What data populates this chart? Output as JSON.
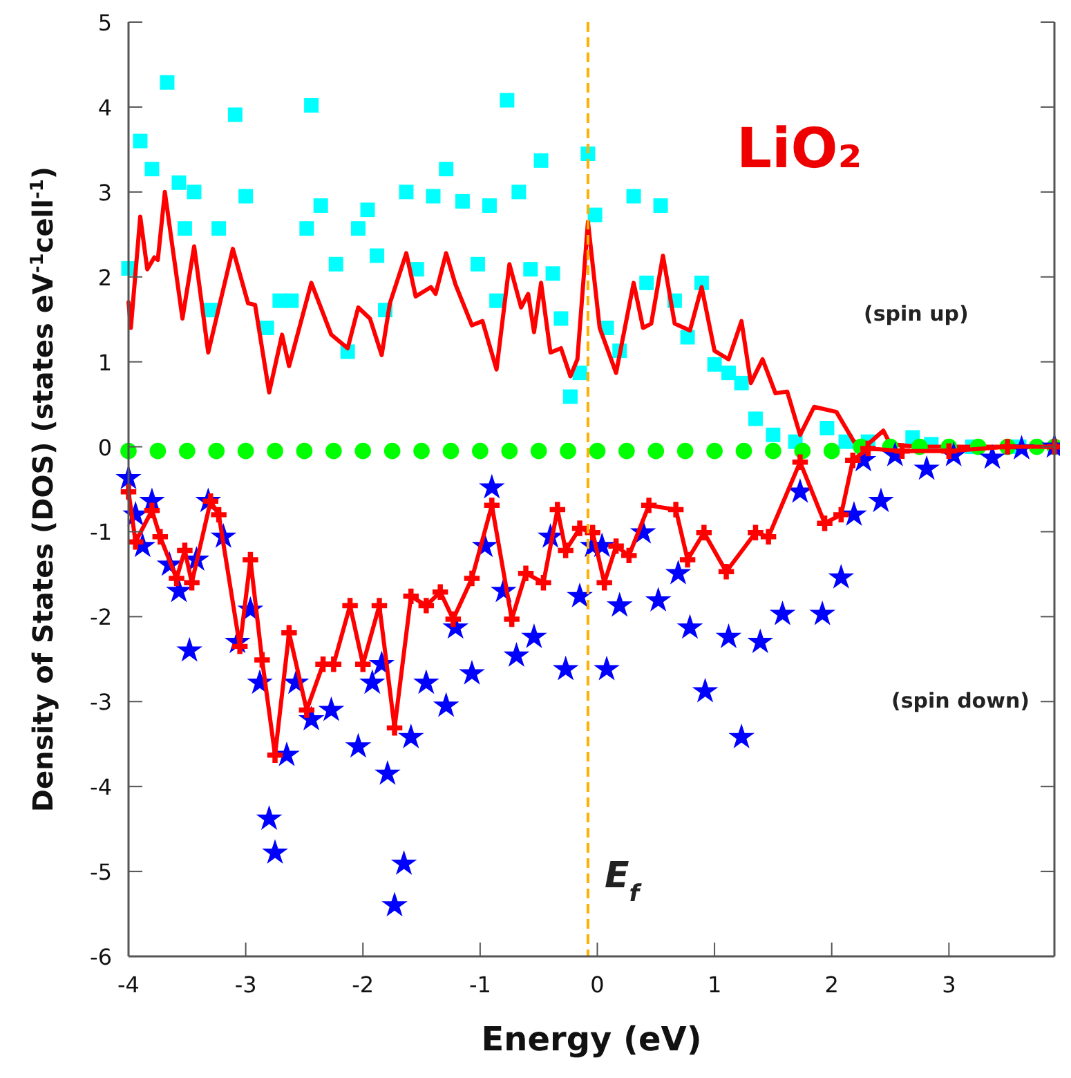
{
  "chart_data": {
    "type": "line",
    "xlabel": "Energy (eV)",
    "ylabel": "Density of States (DOS) (states eV$^{-1}$cell$^{-1}$)",
    "xlim": [
      -4,
      3.9
    ],
    "ylim": [
      -6,
      5
    ],
    "xticks": [
      -4,
      -3,
      -2,
      -1,
      0,
      1,
      2,
      3
    ],
    "yticks": [
      -6,
      -5,
      -4,
      -3,
      -2,
      -1,
      0,
      1,
      2,
      3,
      4,
      5
    ],
    "grid": false,
    "annotations": [
      "LiO₂",
      "(spin up)",
      "(spin down)"
    ],
    "ref_lines": [
      {
        "axis": "x",
        "value": -0.08,
        "label": "E$_{f}$",
        "color": "#ffb000",
        "line_style": "dashed"
      }
    ],
    "series": [
      {
        "type": "scatter",
        "marker": "square",
        "color": "#00ffff",
        "x": [
          -4.0,
          -3.9,
          -3.8,
          -3.67,
          -3.57,
          -3.52,
          -3.44,
          -3.3,
          -3.23,
          -3.09,
          -3.0,
          -2.82,
          -2.71,
          -2.61,
          -2.48,
          -2.44,
          -2.36,
          -2.23,
          -2.13,
          -2.04,
          -1.96,
          -1.88,
          -1.81,
          -1.63,
          -1.54,
          -1.4,
          -1.29,
          -1.15,
          -1.02,
          -0.92,
          -0.86,
          -0.77,
          -0.67,
          -0.57,
          -0.48,
          -0.38,
          -0.31,
          -0.23,
          -0.15,
          -0.08,
          -0.02,
          0.08,
          0.19,
          0.31,
          0.42,
          0.54,
          0.66,
          0.77,
          0.89,
          1.0,
          1.12,
          1.23,
          1.35,
          1.5,
          1.69,
          1.96,
          2.12,
          2.31,
          2.69,
          2.85,
          3.2,
          3.6
        ],
        "values": [
          2.1,
          3.6,
          3.27,
          4.29,
          3.11,
          2.57,
          3.0,
          1.61,
          2.57,
          3.91,
          2.95,
          1.4,
          1.72,
          1.72,
          2.57,
          4.02,
          2.84,
          2.15,
          1.12,
          2.57,
          2.79,
          2.25,
          1.61,
          3.0,
          2.09,
          2.95,
          3.27,
          2.89,
          2.15,
          2.84,
          1.72,
          4.08,
          3.0,
          2.09,
          3.37,
          2.04,
          1.51,
          0.59,
          0.87,
          3.45,
          2.73,
          1.4,
          1.13,
          2.95,
          1.93,
          2.84,
          1.72,
          1.29,
          1.93,
          0.97,
          0.87,
          0.75,
          0.33,
          0.14,
          0.06,
          0.22,
          0.06,
          0.06,
          0.11,
          0.03,
          0.0,
          0.0
        ]
      },
      {
        "marker": "none",
        "color": "#ff0000",
        "x": [
          -4.0,
          -3.98,
          -3.9,
          -3.84,
          -3.78,
          -3.75,
          -3.69,
          -3.54,
          -3.44,
          -3.32,
          -3.11,
          -2.98,
          -2.92,
          -2.8,
          -2.69,
          -2.63,
          -2.44,
          -2.27,
          -2.13,
          -2.04,
          -1.94,
          -1.84,
          -1.77,
          -1.63,
          -1.55,
          -1.42,
          -1.38,
          -1.29,
          -1.21,
          -1.07,
          -0.98,
          -0.86,
          -0.75,
          -0.65,
          -0.59,
          -0.54,
          -0.48,
          -0.4,
          -0.31,
          -0.23,
          -0.17,
          -0.08,
          0.02,
          0.16,
          0.31,
          0.39,
          0.46,
          0.56,
          0.66,
          0.79,
          0.89,
          1.0,
          1.12,
          1.23,
          1.31,
          1.41,
          1.52,
          1.62,
          1.73,
          1.85,
          2.04,
          2.19,
          2.31,
          2.44,
          2.5,
          2.73,
          3.2,
          3.6,
          3.9
        ],
        "values": [
          1.7,
          1.4,
          2.71,
          2.09,
          2.23,
          2.2,
          3.0,
          1.51,
          2.36,
          1.11,
          2.33,
          1.69,
          1.67,
          0.64,
          1.32,
          0.95,
          1.93,
          1.32,
          1.16,
          1.64,
          1.51,
          1.08,
          1.69,
          2.28,
          1.77,
          1.88,
          1.8,
          2.28,
          1.91,
          1.43,
          1.48,
          0.91,
          2.15,
          1.64,
          1.8,
          1.35,
          1.93,
          1.11,
          1.16,
          0.83,
          1.03,
          2.65,
          1.4,
          0.87,
          1.93,
          1.4,
          1.45,
          2.25,
          1.45,
          1.37,
          1.88,
          1.13,
          1.03,
          1.48,
          0.75,
          1.03,
          0.63,
          0.65,
          0.14,
          0.47,
          0.41,
          0.06,
          0.03,
          0.19,
          0.03,
          0.0,
          0.0,
          0.0,
          0.0
        ]
      },
      {
        "type": "scatter",
        "marker": "circle",
        "color": "#00ff00",
        "x": [
          -4.0,
          -3.75,
          -3.5,
          -3.25,
          -3.0,
          -2.75,
          -2.5,
          -2.25,
          -2.0,
          -1.75,
          -1.5,
          -1.25,
          -1.0,
          -0.75,
          -0.5,
          -0.25,
          0.0,
          0.25,
          0.5,
          0.75,
          1.0,
          1.25,
          1.5,
          1.75,
          2.0,
          2.25,
          2.5,
          2.75,
          3.0,
          3.25,
          3.5,
          3.75,
          3.9
        ],
        "values": [
          -0.05,
          -0.05,
          -0.05,
          -0.05,
          -0.05,
          -0.05,
          -0.05,
          -0.05,
          -0.05,
          -0.05,
          -0.05,
          -0.05,
          -0.05,
          -0.05,
          -0.05,
          -0.05,
          -0.05,
          -0.05,
          -0.05,
          -0.05,
          -0.05,
          -0.05,
          -0.05,
          -0.05,
          -0.05,
          0.0,
          0.0,
          0.0,
          0.0,
          0.0,
          0.0,
          0.0,
          0.0
        ]
      },
      {
        "type": "scatter",
        "marker": "star",
        "color": "#0000ff",
        "x": [
          -4.0,
          -3.94,
          -3.88,
          -3.8,
          -3.65,
          -3.57,
          -3.48,
          -3.42,
          -3.32,
          -3.19,
          -3.07,
          -2.96,
          -2.88,
          -2.8,
          -2.75,
          -2.65,
          -2.57,
          -2.44,
          -2.27,
          -2.04,
          -1.92,
          -1.84,
          -1.79,
          -1.73,
          -1.65,
          -1.59,
          -1.46,
          -1.29,
          -1.21,
          -1.07,
          -0.96,
          -0.9,
          -0.8,
          -0.69,
          -0.54,
          -0.4,
          -0.27,
          -0.15,
          -0.04,
          0.04,
          0.08,
          0.19,
          0.39,
          0.52,
          0.69,
          0.79,
          0.92,
          1.12,
          1.23,
          1.39,
          1.58,
          1.73,
          1.92,
          2.08,
          2.19,
          2.27,
          2.42,
          2.54,
          2.81,
          3.04,
          3.37,
          3.62,
          3.9
        ],
        "values": [
          -0.37,
          -0.8,
          -1.17,
          -0.64,
          -1.39,
          -1.7,
          -2.4,
          -1.33,
          -0.64,
          -1.06,
          -2.3,
          -1.92,
          -2.78,
          -4.38,
          -4.78,
          -3.63,
          -2.78,
          -3.21,
          -3.1,
          -3.53,
          -2.78,
          -2.56,
          -3.85,
          -5.4,
          -4.91,
          -3.42,
          -2.78,
          -3.05,
          -2.13,
          -2.67,
          -1.17,
          -0.48,
          -1.7,
          -2.46,
          -2.24,
          -1.06,
          -2.62,
          -1.76,
          -1.17,
          -1.17,
          -2.62,
          -1.87,
          -1.01,
          -1.81,
          -1.49,
          -2.13,
          -2.88,
          -2.24,
          -3.42,
          -2.3,
          -1.97,
          -0.53,
          -1.97,
          -1.54,
          -0.8,
          -0.16,
          -0.64,
          -0.1,
          -0.26,
          -0.1,
          -0.13,
          -0.02,
          0.0
        ]
      },
      {
        "marker": "cross",
        "color": "#ff0000",
        "x": [
          -4.0,
          -3.94,
          -3.8,
          -3.73,
          -3.59,
          -3.52,
          -3.46,
          -3.3,
          -3.23,
          -3.05,
          -2.96,
          -2.86,
          -2.75,
          -2.63,
          -2.48,
          -2.34,
          -2.25,
          -2.11,
          -2.0,
          -1.86,
          -1.73,
          -1.59,
          -1.46,
          -1.34,
          -1.23,
          -1.07,
          -0.9,
          -0.73,
          -0.61,
          -0.46,
          -0.34,
          -0.27,
          -0.15,
          -0.04,
          0.06,
          0.16,
          0.27,
          0.44,
          0.67,
          0.77,
          0.91,
          1.1,
          1.35,
          1.46,
          1.73,
          1.94,
          2.08,
          2.18,
          2.31,
          2.6,
          3.0,
          3.5,
          3.9
        ],
        "values": [
          -0.53,
          -1.12,
          -0.75,
          -1.06,
          -1.55,
          -1.22,
          -1.6,
          -0.64,
          -0.8,
          -2.35,
          -1.33,
          -2.51,
          -3.63,
          -2.19,
          -3.1,
          -2.56,
          -2.56,
          -1.87,
          -2.56,
          -1.87,
          -3.31,
          -1.76,
          -1.87,
          -1.71,
          -2.03,
          -1.55,
          -0.69,
          -2.03,
          -1.49,
          -1.6,
          -0.74,
          -1.22,
          -0.96,
          -1.01,
          -1.6,
          -1.17,
          -1.28,
          -0.69,
          -0.74,
          -1.33,
          -1.01,
          -1.47,
          -1.01,
          -1.06,
          -0.18,
          -0.9,
          -0.8,
          -0.16,
          -0.02,
          -0.05,
          -0.05,
          0.0,
          0.0
        ]
      }
    ]
  }
}
